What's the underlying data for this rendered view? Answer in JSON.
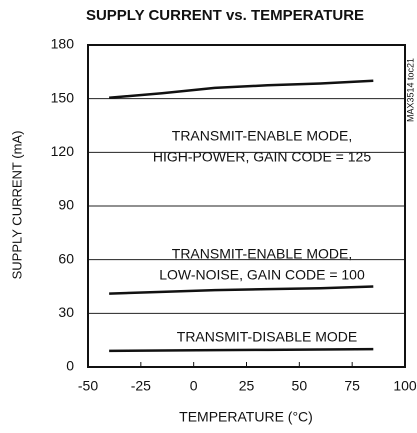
{
  "chart_data": {
    "type": "line",
    "title": "SUPPLY CURRENT vs. TEMPERATURE",
    "x_label": "TEMPERATURE (°C)",
    "y_label": "SUPPLY CURRENT (mA)",
    "side_label": "MAX3514 toc21",
    "annotations": [
      "TRANSMIT-ENABLE MODE,",
      "HIGH-POWER, GAIN CODE = 125",
      "TRANSMIT-ENABLE MODE,",
      "LOW-NOISE, GAIN CODE = 100",
      "TRANSMIT-DISABLE MODE"
    ],
    "x": [
      -40,
      -15,
      10,
      35,
      60,
      85
    ],
    "series": [
      {
        "name": "HIGH-POWER",
        "color": "#111111",
        "values": [
          150.5,
          153,
          156,
          157.5,
          158.5,
          160
        ]
      },
      {
        "name": "LOW-NOISE",
        "color": "#111111",
        "values": [
          41,
          42,
          43,
          43.5,
          44,
          45
        ]
      },
      {
        "name": "TRANSMIT-DISABLE",
        "color": "#111111",
        "values": [
          9,
          9.2,
          9.4,
          9.6,
          9.8,
          10
        ]
      }
    ],
    "xlim": [
      -50,
      100
    ],
    "xticks": [
      -50,
      -25,
      0,
      25,
      50,
      75,
      100
    ],
    "ylim": [
      0,
      180
    ],
    "yticks": [
      0,
      30,
      60,
      90,
      120,
      150,
      180
    ],
    "grid": true
  }
}
